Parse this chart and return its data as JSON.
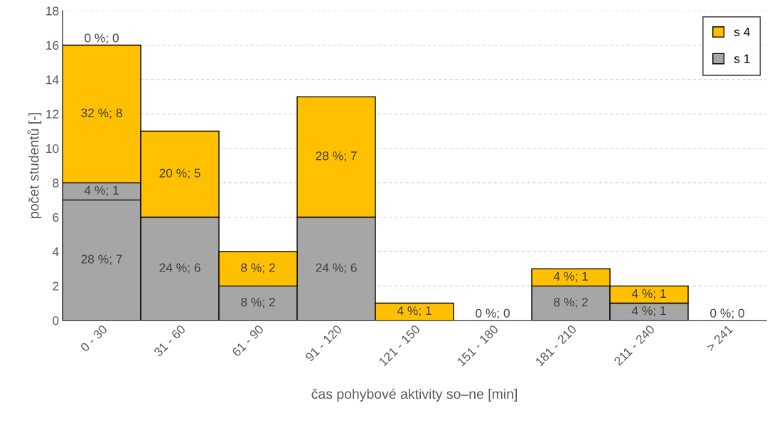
{
  "chart_data": {
    "type": "bar",
    "stacked": true,
    "xlabel": "čas pohybové aktivity so–ne [min]",
    "ylabel": "počet studentů [-]",
    "categories": [
      "0 - 30",
      "31 - 60",
      "61 - 90",
      "91 - 120",
      "121 - 150",
      "151 - 180",
      "181 - 210",
      "211 - 240",
      "> 241"
    ],
    "ylim": [
      0,
      18
    ],
    "yticks": [
      0,
      2,
      4,
      6,
      8,
      10,
      12,
      14,
      16,
      18
    ],
    "grid": "y",
    "legend": "top right",
    "series": [
      {
        "color": "#a6a6a6",
        "values": [
          7,
          0,
          0,
          0,
          0,
          0,
          0,
          0,
          0
        ],
        "value_labels": [
          "28 %; 7",
          null,
          null,
          null,
          null,
          null,
          null,
          null,
          null
        ]
      },
      {
        "name": "s 1",
        "color": "#a6a6a6",
        "values": [
          1,
          6,
          2,
          6,
          0,
          0,
          2,
          1,
          0
        ],
        "value_labels": [
          "4 %; 1",
          "24 %; 6",
          "8 %; 2",
          "24 %; 6",
          null,
          null,
          "8 %; 2",
          "4 %; 1",
          null
        ]
      },
      {
        "color": "#ffc000",
        "values": [
          8,
          0,
          0,
          0,
          0,
          0,
          0,
          0,
          0
        ],
        "value_labels": [
          "32 %; 8",
          null,
          null,
          null,
          null,
          null,
          null,
          null,
          null
        ]
      },
      {
        "name": "s 4",
        "color": "#ffc000",
        "values": [
          0,
          5,
          2,
          7,
          1,
          0,
          1,
          1,
          0
        ],
        "value_labels": [
          "0 %; 0",
          "20 %; 5",
          "8 %; 2",
          "28 %; 7",
          "4 %; 1",
          "0 %; 0",
          "4 %; 1",
          "4 %; 1",
          "0 %; 0"
        ]
      }
    ]
  }
}
